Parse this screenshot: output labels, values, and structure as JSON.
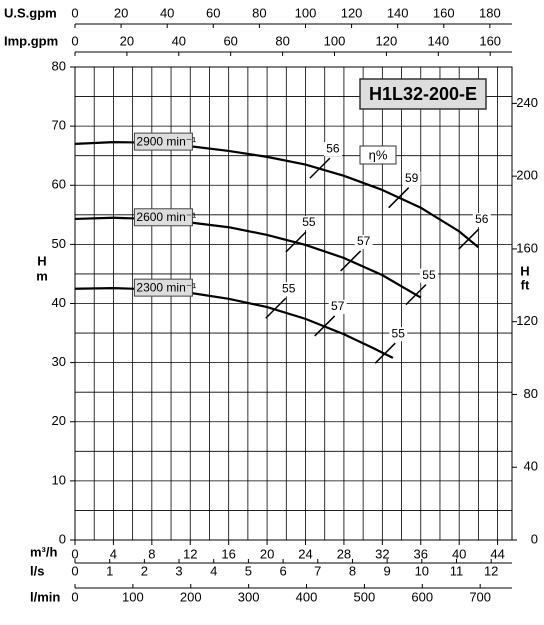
{
  "chart_data": {
    "type": "line",
    "title": "H1L32-200-E",
    "annotation": "η%",
    "xlabel": "m³/h",
    "xlim": [
      0,
      45.5
    ],
    "xticks": [
      0,
      4,
      8,
      12,
      16,
      20,
      24,
      28,
      32,
      36,
      40,
      44
    ],
    "xgrid": [
      0,
      2,
      4,
      6,
      8,
      10,
      12,
      14,
      16,
      18,
      20,
      22,
      24,
      26,
      28,
      30,
      32,
      34,
      36,
      38,
      40,
      42,
      44
    ],
    "ylabel": "H",
    "yunit": "m",
    "ylim": [
      0,
      80
    ],
    "yticks": [
      0,
      10,
      20,
      30,
      40,
      50,
      60,
      70,
      80
    ],
    "ygrid": [
      0,
      5,
      10,
      15,
      20,
      25,
      30,
      35,
      40,
      45,
      50,
      55,
      60,
      65,
      70,
      75,
      80
    ],
    "y2label": "H",
    "y2unit": "ft",
    "y2lim": [
      0,
      260
    ],
    "y2ticks": [
      0,
      40,
      80,
      120,
      160,
      200,
      240
    ],
    "secondary_x_axes": [
      {
        "label": "U.S.gpm",
        "position": "top",
        "xlim": [
          0,
          189.6
        ],
        "xticks": [
          0,
          20,
          40,
          60,
          80,
          100,
          120,
          140,
          160,
          180
        ]
      },
      {
        "label": "Imp.gpm",
        "position": "top",
        "xlim": [
          0,
          168.4
        ],
        "xticks": [
          0,
          20,
          40,
          60,
          80,
          100,
          120,
          140,
          160
        ]
      },
      {
        "label": "l/s",
        "position": "bottom",
        "xlim": [
          0,
          12.6
        ],
        "xticks": [
          0,
          1,
          2,
          3,
          4,
          5,
          6,
          7,
          8,
          9,
          10,
          11,
          12
        ]
      },
      {
        "label": "l/min",
        "position": "bottom",
        "xlim": [
          0,
          755
        ],
        "xticks": [
          0,
          100,
          200,
          300,
          400,
          500,
          600,
          700
        ]
      }
    ],
    "series": [
      {
        "name": "2900 min⁻¹",
        "color": "#000000",
        "x": [
          0,
          4,
          8,
          12,
          16,
          20,
          24,
          28,
          32,
          36,
          40,
          42
        ],
        "values": [
          67,
          67.3,
          67.2,
          66.6,
          65.8,
          64.8,
          63.5,
          61.6,
          59.2,
          56.2,
          52.2,
          49.5
        ],
        "efficiency": [
          {
            "q": 25.5,
            "h": 62.9,
            "eta": 56
          },
          {
            "q": 33.7,
            "h": 57.9,
            "eta": 59
          },
          {
            "q": 41,
            "h": 50.9,
            "eta": 56
          }
        ]
      },
      {
        "name": "2600 min⁻¹",
        "color": "#000000",
        "x": [
          0,
          4,
          8,
          12,
          16,
          20,
          24,
          28,
          32,
          36
        ],
        "values": [
          54.3,
          54.5,
          54.3,
          53.7,
          52.9,
          51.6,
          49.9,
          47.7,
          44.8,
          41
        ],
        "efficiency": [
          {
            "q": 23,
            "h": 50.4,
            "eta": 55
          },
          {
            "q": 28.7,
            "h": 47.2,
            "eta": 57
          },
          {
            "q": 35.5,
            "h": 41.5,
            "eta": 55
          }
        ]
      },
      {
        "name": "2300 min⁻¹",
        "color": "#000000",
        "x": [
          0,
          4,
          8,
          12,
          16,
          20,
          24,
          28,
          31,
          33.1
        ],
        "values": [
          42.5,
          42.6,
          42.4,
          41.8,
          40.8,
          39.4,
          37.4,
          34.8,
          32.5,
          30.8
        ],
        "efficiency": [
          {
            "q": 20.9,
            "h": 39.2,
            "eta": 55
          },
          {
            "q": 26,
            "h": 36.2,
            "eta": 57
          },
          {
            "q": 32.3,
            "h": 31.6,
            "eta": 55
          }
        ]
      }
    ]
  }
}
